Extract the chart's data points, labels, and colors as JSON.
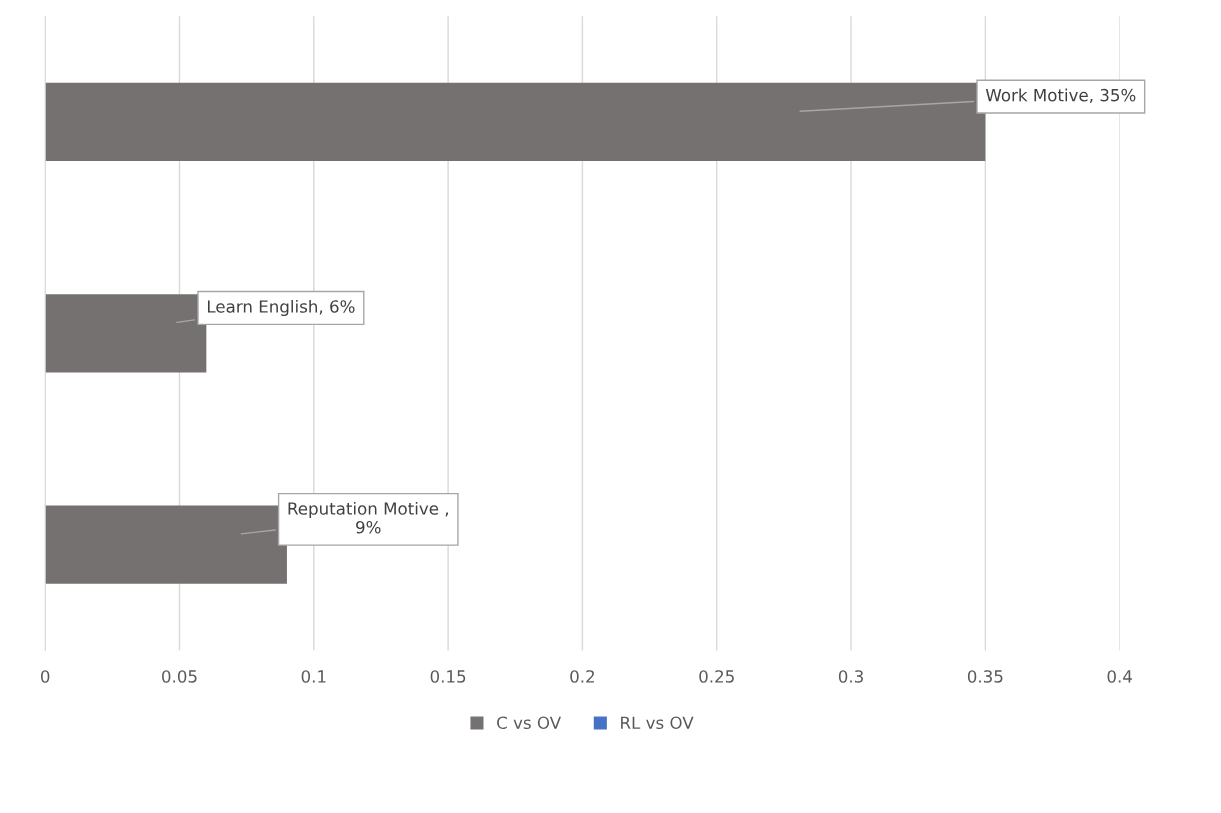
{
  "chart_data": {
    "type": "bar",
    "orientation": "horizontal",
    "categories": [
      null,
      null,
      null
    ],
    "series": [
      {
        "name": "C vs OV",
        "color": "#767171",
        "values": [
          0.35,
          0.06,
          0.09
        ],
        "value_labels": [
          "Work Motive, 35%",
          "Learn English, 6%",
          "Reputation Motive ,\n9%"
        ]
      },
      {
        "name": "RL vs OV",
        "color": "#4472c4",
        "values": [
          null,
          null,
          null
        ]
      }
    ],
    "xlim": [
      0,
      0.4
    ],
    "xticks": [
      0,
      0.05,
      0.1,
      0.15,
      0.2,
      0.25,
      0.3,
      0.35,
      0.4
    ],
    "grid": "x",
    "legend": "bottom"
  }
}
